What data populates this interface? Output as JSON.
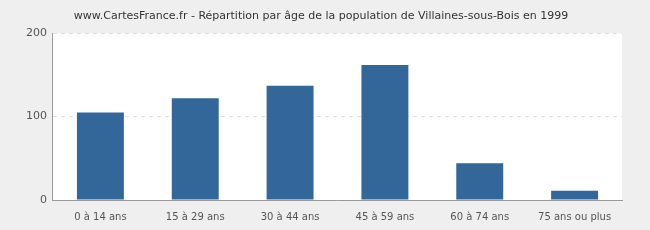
{
  "chart_data": {
    "type": "bar",
    "title": "www.CartesFrance.fr - Répartition par âge de la population de Villaines-sous-Bois en 1999",
    "categories": [
      "0 à 14 ans",
      "15 à 29 ans",
      "30 à 44 ans",
      "45 à 59 ans",
      "60 à 74 ans",
      "75 ans ou plus"
    ],
    "values": [
      105,
      122,
      137,
      162,
      44,
      11
    ],
    "color": "#336699",
    "ylim": [
      0,
      200
    ],
    "yticks": [
      0,
      100,
      200
    ],
    "grid": true
  }
}
